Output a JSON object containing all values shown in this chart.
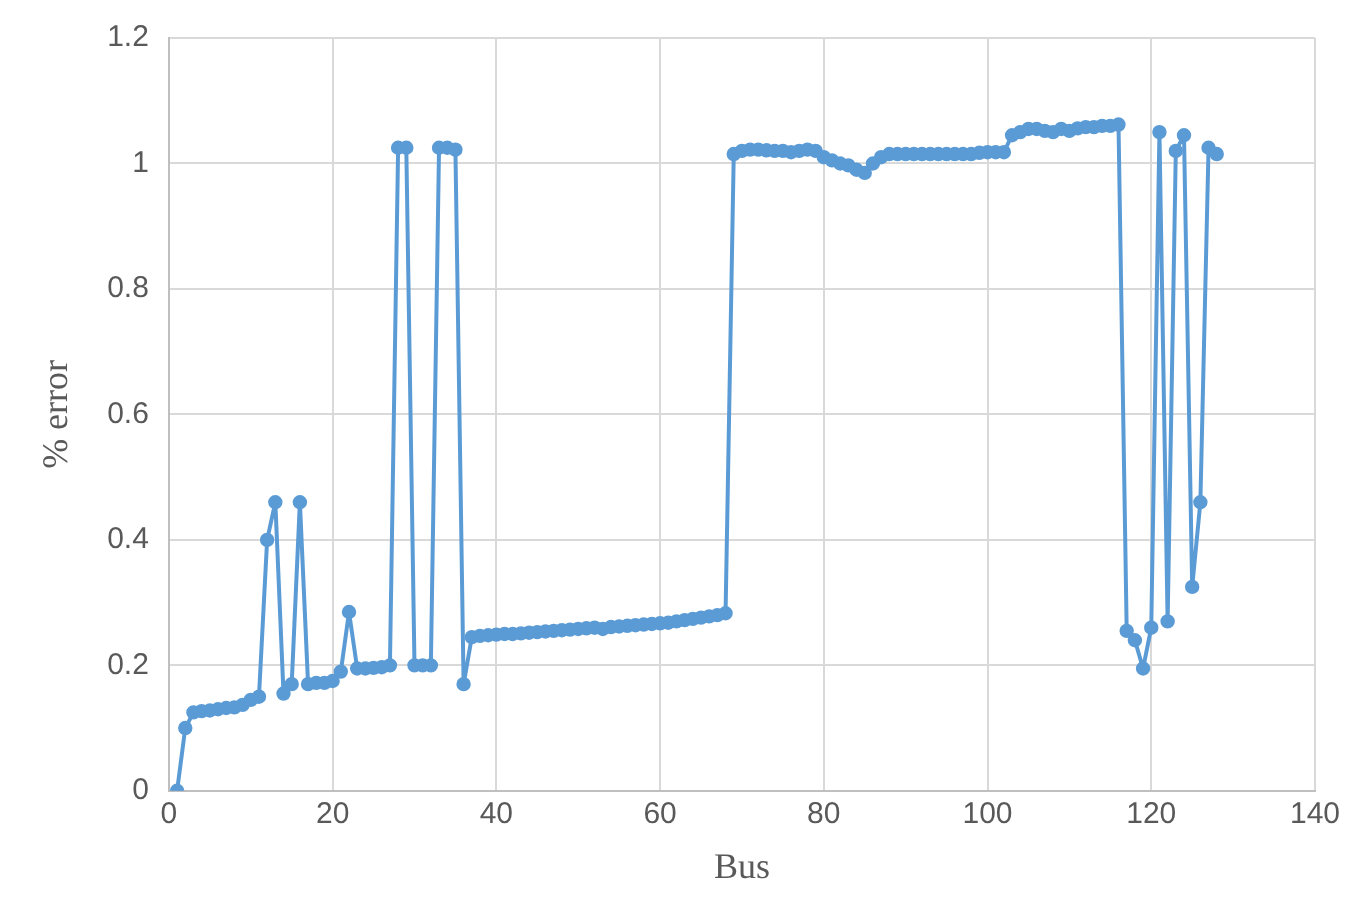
{
  "chart_data": {
    "type": "line",
    "xlabel": "Bus",
    "ylabel": "% error",
    "x": [
      1,
      2,
      3,
      4,
      5,
      6,
      7,
      8,
      9,
      10,
      11,
      12,
      13,
      14,
      15,
      16,
      17,
      18,
      19,
      20,
      21,
      22,
      23,
      24,
      25,
      26,
      27,
      28,
      29,
      30,
      31,
      32,
      33,
      34,
      35,
      36,
      37,
      38,
      39,
      40,
      41,
      42,
      43,
      44,
      45,
      46,
      47,
      48,
      49,
      50,
      51,
      52,
      53,
      54,
      55,
      56,
      57,
      58,
      59,
      60,
      61,
      62,
      63,
      64,
      65,
      66,
      67,
      68,
      69,
      70,
      71,
      72,
      73,
      74,
      75,
      76,
      77,
      78,
      79,
      80,
      81,
      82,
      83,
      84,
      85,
      86,
      87,
      88,
      89,
      90,
      91,
      92,
      93,
      94,
      95,
      96,
      97,
      98,
      99,
      100,
      101,
      102,
      103,
      104,
      105,
      106,
      107,
      108,
      109,
      110,
      111,
      112,
      113,
      114,
      115,
      116,
      117,
      118,
      119,
      120,
      121,
      122,
      123,
      124,
      125,
      126,
      127,
      128
    ],
    "series": [
      {
        "color": "#5b9bd5",
        "values": [
          0,
          0.1,
          0.125,
          0.127,
          0.128,
          0.13,
          0.132,
          0.133,
          0.137,
          0.145,
          0.15,
          0.4,
          0.46,
          0.155,
          0.17,
          0.46,
          0.17,
          0.172,
          0.172,
          0.175,
          0.19,
          0.285,
          0.195,
          0.195,
          0.196,
          0.197,
          0.2,
          1.025,
          1.025,
          0.2,
          0.2,
          0.2,
          1.025,
          1.025,
          1.022,
          0.17,
          0.245,
          0.247,
          0.248,
          0.249,
          0.25,
          0.25,
          0.251,
          0.252,
          0.253,
          0.254,
          0.255,
          0.256,
          0.257,
          0.258,
          0.259,
          0.26,
          0.258,
          0.261,
          0.262,
          0.263,
          0.264,
          0.265,
          0.266,
          0.267,
          0.268,
          0.27,
          0.272,
          0.274,
          0.276,
          0.278,
          0.28,
          0.283,
          1.015,
          1.02,
          1.022,
          1.022,
          1.021,
          1.02,
          1.02,
          1.018,
          1.02,
          1.022,
          1.02,
          1.01,
          1.005,
          1,
          0.997,
          0.99,
          0.985,
          1,
          1.01,
          1.015,
          1.015,
          1.015,
          1.015,
          1.015,
          1.015,
          1.015,
          1.015,
          1.015,
          1.015,
          1.015,
          1.017,
          1.018,
          1.018,
          1.018,
          1.045,
          1.05,
          1.055,
          1.055,
          1.052,
          1.05,
          1.055,
          1.052,
          1.056,
          1.058,
          1.058,
          1.06,
          1.06,
          1.062,
          0.255,
          0.24,
          0.195,
          0.26,
          1.05,
          0.27,
          1.02,
          1.045,
          0.325,
          0.46,
          1.025,
          1.015
        ]
      }
    ],
    "xlim": [
      0,
      140
    ],
    "xticks": [
      0,
      20,
      40,
      60,
      80,
      100,
      120,
      140
    ],
    "ylim": [
      0,
      1.2
    ],
    "yticks": [
      0,
      0.2,
      0.4,
      0.6,
      0.8,
      1,
      1.2
    ],
    "grid": true,
    "legend": false,
    "marker": "circle",
    "line_style": "solid"
  }
}
